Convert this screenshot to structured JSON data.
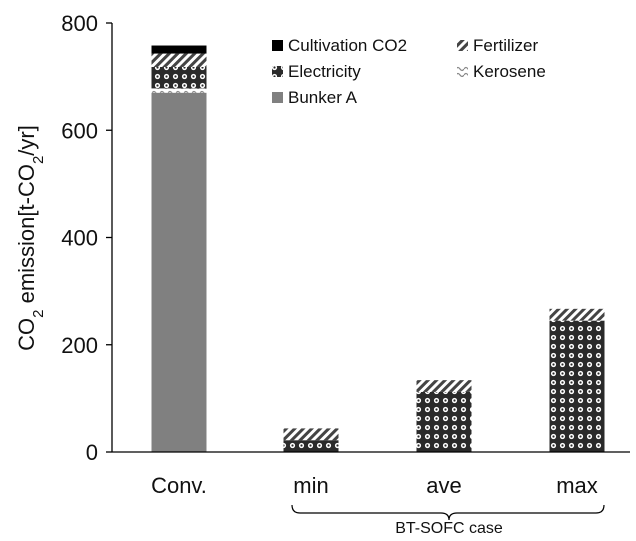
{
  "chart_data": {
    "type": "bar",
    "stacked": true,
    "categories": [
      "Conv.",
      "min",
      "ave",
      "max"
    ],
    "series": [
      {
        "name": "Bunker A",
        "values": [
          670,
          0,
          0,
          0
        ],
        "color": "#808080",
        "pattern": "solid-gray"
      },
      {
        "name": "Kerosene",
        "values": [
          8,
          0,
          0,
          0
        ],
        "color": "#d8d8d8",
        "pattern": "light-wave"
      },
      {
        "name": "Electricity",
        "values": [
          40,
          22,
          112,
          245
        ],
        "color": "#222222",
        "pattern": "circles"
      },
      {
        "name": "Fertilizer",
        "values": [
          25,
          22,
          22,
          22
        ],
        "color": "#555555",
        "pattern": "diagonal"
      },
      {
        "name": "Cultivation CO2",
        "values": [
          15,
          0,
          0,
          0
        ],
        "color": "#000000",
        "pattern": "solid-black"
      }
    ],
    "yticks": [
      0,
      200,
      400,
      600,
      800
    ],
    "ylim": [
      0,
      800
    ],
    "ylabel": {
      "prefix": "CO",
      "sub1": "2",
      "middle": " emission[t-CO",
      "sub2": "2",
      "suffix": "/yr]"
    },
    "group_label": "BT-SOFC case",
    "legend_placement": "top-right",
    "legend_order": [
      "Cultivation CO2",
      "Fertilizer",
      "Electricity",
      "Kerosene",
      "Bunker A"
    ],
    "grid": false
  }
}
